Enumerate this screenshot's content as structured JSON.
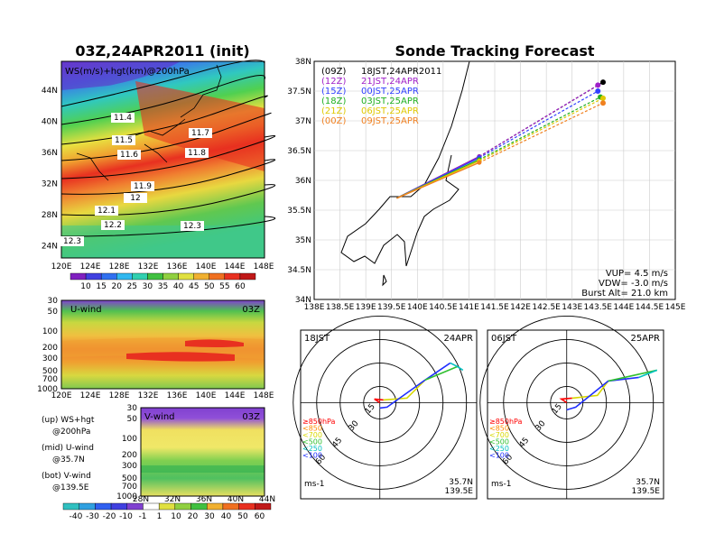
{
  "left_title": "03Z,24APR2011 (init)",
  "main_title": "Sonde Tracking Forecast",
  "ws_panel": {
    "label": "WS(m/s)+hgt(km)@200hPa",
    "contour_labels": [
      "11.4",
      "11.5",
      "11.6",
      "11.7",
      "11.8",
      "11.9",
      "12",
      "12.1",
      "12.2",
      "12.3",
      "12.3"
    ],
    "lat_ticks": [
      "44N",
      "40N",
      "36N",
      "32N",
      "28N",
      "24N"
    ],
    "lon_ticks": [
      "120E",
      "124E",
      "128E",
      "132E",
      "136E",
      "140E",
      "144E",
      "148E"
    ],
    "colorbar_ticks": [
      "10",
      "15",
      "20",
      "25",
      "30",
      "35",
      "40",
      "45",
      "50",
      "55",
      "60"
    ]
  },
  "u_panel": {
    "label": "U-wind",
    "time": "03Z",
    "p_ticks": [
      "30",
      "50",
      "100",
      "200",
      "300",
      "500",
      "700",
      "1000"
    ],
    "lon_ticks": [
      "120E",
      "124E",
      "128E",
      "132E",
      "136E",
      "140E",
      "144E",
      "148E"
    ]
  },
  "v_panel": {
    "label": "V-wind",
    "time": "03Z",
    "p_ticks": [
      "30",
      "50",
      "100",
      "200",
      "300",
      "500",
      "700",
      "1000"
    ],
    "lat_ticks": [
      "28N",
      "32N",
      "36N",
      "40N",
      "44N"
    ],
    "colorbar_ticks": [
      "-40",
      "-30",
      "-20",
      "-10",
      "-1",
      "1",
      "10",
      "20",
      "30",
      "40",
      "50",
      "60"
    ]
  },
  "notes": [
    "(up) WS+hgt",
    "@200hPa",
    "(mid) U-wind",
    "@35.7N",
    "(bot) V-wind",
    "@139.5E"
  ],
  "track": {
    "lat_ticks": [
      "38N",
      "37.5N",
      "37N",
      "36.5N",
      "36N",
      "35.5N",
      "35N",
      "34.5N",
      "34N"
    ],
    "lon_ticks": [
      "138E",
      "138.5E",
      "139E",
      "139.5E",
      "140E",
      "140.5E",
      "141E",
      "141.5E",
      "142E",
      "142.5E",
      "143E",
      "143.5E",
      "144E",
      "144.5E",
      "145E"
    ],
    "legend": [
      {
        "z": "(09Z)",
        "t": "18JST,24APR2011",
        "color": "#000000"
      },
      {
        "z": "(12Z)",
        "t": "21JST,24APR",
        "color": "#a020c8"
      },
      {
        "z": "(15Z)",
        "t": "00JST,25APR",
        "color": "#3040ff"
      },
      {
        "z": "(18Z)",
        "t": "03JST,25APR",
        "color": "#20b020"
      },
      {
        "z": "(21Z)",
        "t": "06JST,25APR",
        "color": "#e0c800"
      },
      {
        "z": "(00Z)",
        "t": "09JST,25APR",
        "color": "#f08020"
      }
    ],
    "params": [
      "VUP= 4.5 m/s",
      "VDW= -3.0 m/s",
      "Burst Alt= 21.0 km"
    ]
  },
  "hodo1": {
    "time": "18JST",
    "date": "24APR",
    "rings": [
      "15",
      "30",
      "45",
      "60"
    ],
    "lat": "35.7N",
    "lon": "139.5E",
    "unit": "ms-1"
  },
  "hodo2": {
    "time": "06JST",
    "date": "25APR",
    "rings": [
      "15",
      "30",
      "45",
      "60"
    ],
    "lat": "35.7N",
    "lon": "139.5E",
    "unit": "ms-1"
  },
  "hodo_legend": [
    {
      "t": "≥850hPa",
      "color": "#ff0000"
    },
    {
      "t": "<850",
      "color": "#ff8c00"
    },
    {
      "t": "<700",
      "color": "#d8d800"
    },
    {
      "t": "<500",
      "color": "#30c030"
    },
    {
      "t": "<250",
      "color": "#00c0c0"
    },
    {
      "t": "<100",
      "color": "#2030ff"
    }
  ],
  "chart_data": [
    {
      "type": "heatmap",
      "title": "WS(m/s)+hgt(km)@200hPa",
      "xlim": [
        "120E",
        "148E"
      ],
      "ylim": [
        "24N",
        "44N"
      ]
    },
    {
      "type": "heatmap",
      "title": "U-wind",
      "xlim": [
        "120E",
        "148E"
      ],
      "ylim": [
        1000,
        30
      ]
    },
    {
      "type": "heatmap",
      "title": "V-wind",
      "xlim": [
        "28N",
        "44N"
      ],
      "ylim": [
        1000,
        30
      ]
    },
    {
      "type": "line",
      "title": "Sonde Tracking Forecast",
      "xlim": [
        138,
        145
      ],
      "ylim": [
        34,
        38
      ],
      "series": [
        {
          "name": "(09Z) 18JST,24APR2011",
          "x": [
            139.6,
            141.2,
            143.6
          ],
          "y": [
            35.7,
            36.4,
            37.65
          ]
        },
        {
          "name": "(12Z) 21JST,24APR",
          "x": [
            139.6,
            141.2,
            143.5
          ],
          "y": [
            35.7,
            36.4,
            37.6
          ]
        },
        {
          "name": "(15Z) 00JST,25APR",
          "x": [
            139.6,
            141.2,
            143.5
          ],
          "y": [
            35.7,
            36.38,
            37.5
          ]
        },
        {
          "name": "(18Z) 03JST,25APR",
          "x": [
            139.6,
            141.2,
            143.55
          ],
          "y": [
            35.7,
            36.35,
            37.4
          ]
        },
        {
          "name": "(21Z) 06JST,25APR",
          "x": [
            139.6,
            141.2,
            143.6
          ],
          "y": [
            35.7,
            36.33,
            37.38
          ]
        },
        {
          "name": "(00Z) 09JST,25APR",
          "x": [
            139.6,
            141.2,
            143.6
          ],
          "y": [
            35.7,
            36.3,
            37.3
          ]
        }
      ]
    }
  ]
}
